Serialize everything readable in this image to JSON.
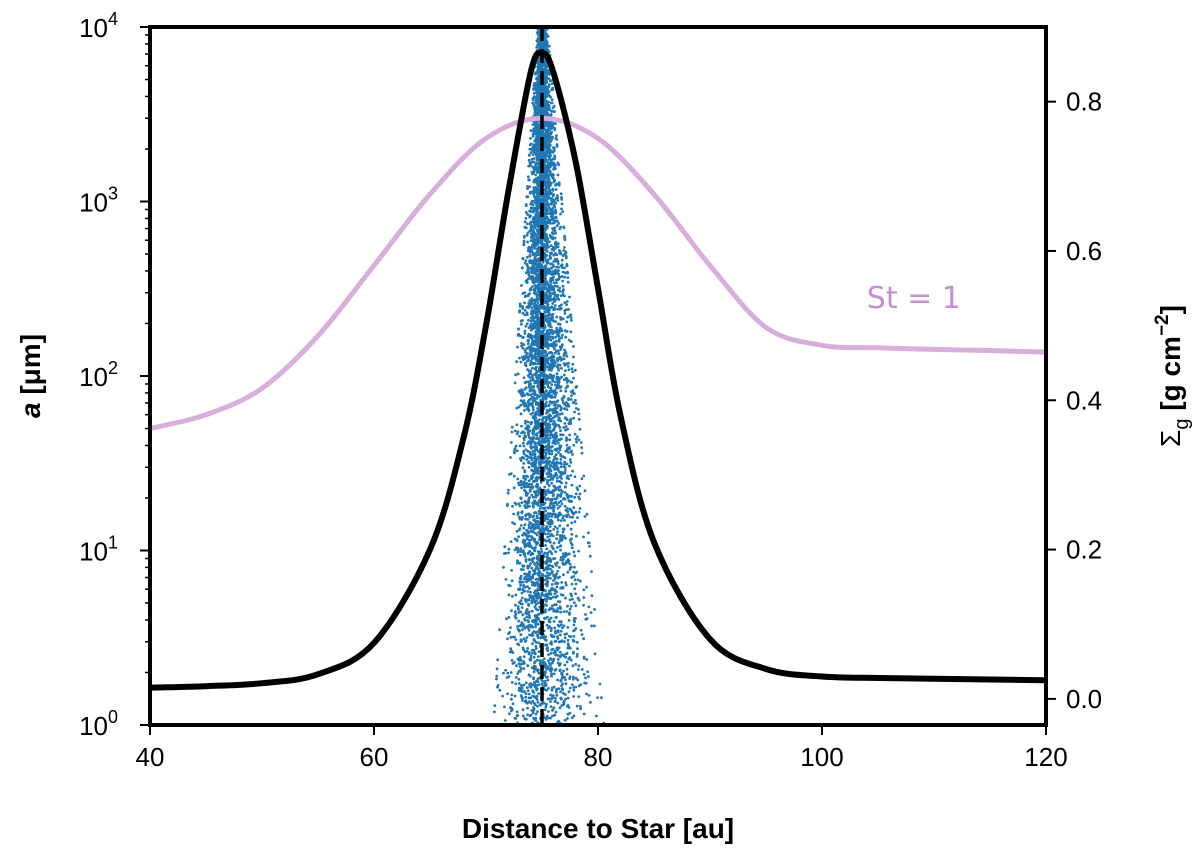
{
  "chart_data": {
    "type": "scatter",
    "title": "",
    "xlabel": "Distance to Star [au]",
    "xlim": [
      40,
      120
    ],
    "x_ticks": [
      40,
      60,
      80,
      100,
      120
    ],
    "x_tick_labels": [
      "40",
      "60",
      "80",
      "100",
      "120"
    ],
    "left_axis": {
      "label_italic": "a",
      "label_rest": " [μm]",
      "scale": "log",
      "ylim": [
        1,
        10000
      ],
      "ticks": [
        {
          "value": 1,
          "base": "10",
          "exp": "0"
        },
        {
          "value": 10,
          "base": "10",
          "exp": "1"
        },
        {
          "value": 100,
          "base": "10",
          "exp": "2"
        },
        {
          "value": 1000,
          "base": "10",
          "exp": "3"
        },
        {
          "value": 10000,
          "base": "10",
          "exp": "4"
        }
      ]
    },
    "right_axis": {
      "label_main": "Σ",
      "label_sub": "g",
      "label_units": " [g cm",
      "label_exp": "−2",
      "label_close": "]",
      "scale": "linear",
      "ylim": [
        -0.035,
        0.9
      ],
      "ticks": [
        0.0,
        0.2,
        0.4,
        0.6,
        0.8
      ],
      "tick_labels": [
        "0.0",
        "0.2",
        "0.4",
        "0.6",
        "0.8"
      ]
    },
    "series": [
      {
        "name": "St = 1",
        "axis": "left",
        "kind": "line",
        "color": "#d8aedb",
        "x": [
          40,
          45,
          50,
          55,
          60,
          65,
          70,
          75,
          80,
          85,
          90,
          95,
          100,
          105,
          110,
          115,
          120
        ],
        "y": [
          50,
          60,
          85,
          170,
          430,
          1100,
          2300,
          3000,
          2300,
          1100,
          430,
          190,
          150,
          145,
          142,
          140,
          137
        ]
      },
      {
        "name": "gas surface density",
        "axis": "right",
        "kind": "line",
        "color": "#000000",
        "x": [
          40,
          45,
          50,
          55,
          60,
          65,
          68,
          70,
          72,
          74,
          75,
          76,
          78,
          80,
          82,
          85,
          90,
          95,
          100,
          105,
          110,
          115,
          120
        ],
        "y": [
          0.015,
          0.017,
          0.021,
          0.033,
          0.075,
          0.2,
          0.35,
          0.5,
          0.68,
          0.84,
          0.865,
          0.84,
          0.72,
          0.55,
          0.38,
          0.21,
          0.08,
          0.04,
          0.03,
          0.028,
          0.027,
          0.026,
          0.025
        ]
      },
      {
        "name": "dust particles",
        "axis": "left",
        "kind": "scatter",
        "color": "#1f77b4",
        "center_x": 75,
        "count": 6000,
        "width_at_min_size_au": 4.8,
        "width_at_max_size_au": 0.45
      },
      {
        "name": "ring center",
        "axis": "left",
        "kind": "vline",
        "color": "#000000",
        "style": "dashed",
        "x": 75
      }
    ],
    "annotations": [
      {
        "text": "St = 1",
        "x": 104,
        "y": 220,
        "color": "#c58fd1"
      }
    ]
  }
}
